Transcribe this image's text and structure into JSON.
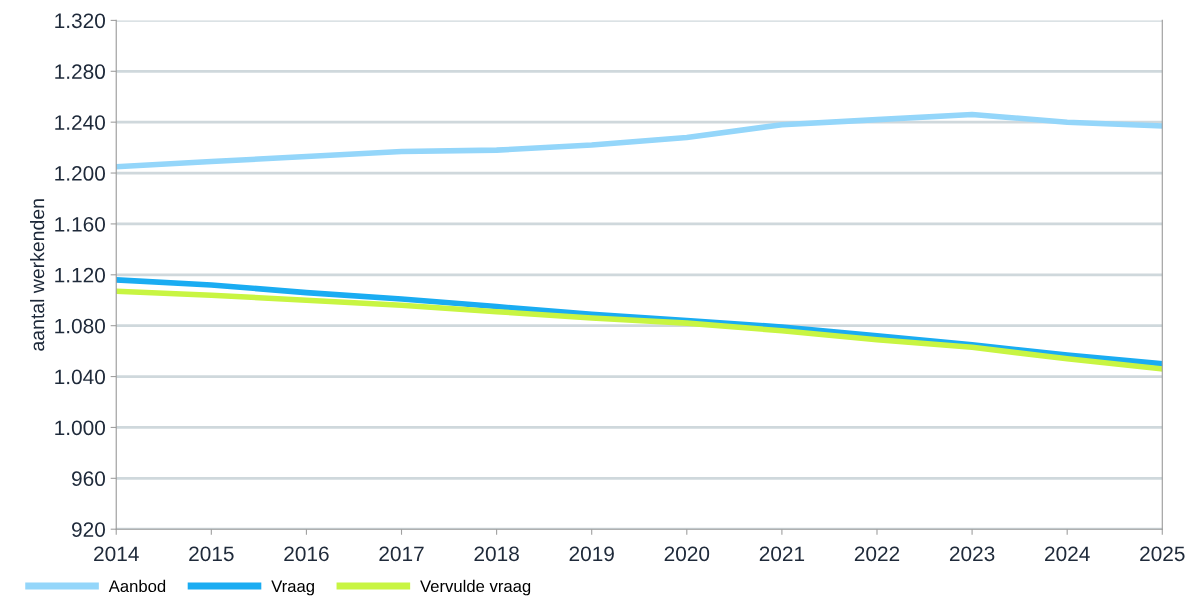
{
  "chart_data": {
    "type": "line",
    "ylabel": "aantal werkenden",
    "x": [
      2014,
      2015,
      2016,
      2017,
      2018,
      2019,
      2020,
      2021,
      2022,
      2023,
      2024,
      2025
    ],
    "series": [
      {
        "name": "Aanbod",
        "color": "#94d6fa",
        "values": [
          1205,
          1209,
          1213,
          1217,
          1218,
          1222,
          1228,
          1238,
          1242,
          1246,
          1240,
          1237
        ]
      },
      {
        "name": "Vraag",
        "color": "#1aacf2",
        "values": [
          1116,
          1112,
          1106,
          1101,
          1095,
          1089,
          1084,
          1079,
          1072,
          1065,
          1057,
          1050
        ]
      },
      {
        "name": "Vervulde vraag",
        "color": "#c8f542",
        "values": [
          1107,
          1104,
          1100,
          1096,
          1091,
          1086,
          1082,
          1076,
          1069,
          1063,
          1054,
          1046
        ]
      }
    ],
    "xlim": [
      2014,
      2025
    ],
    "xticks": [
      2014,
      2015,
      2016,
      2017,
      2018,
      2019,
      2020,
      2021,
      2022,
      2023,
      2024,
      2025
    ],
    "ylim": [
      920,
      1320
    ],
    "yticks": [
      920,
      960,
      {
        "value": 1000,
        "label": "1.000"
      },
      {
        "value": 1040,
        "label": "1.040"
      },
      {
        "value": 1080,
        "label": "1.080"
      },
      {
        "value": 1120,
        "label": "1.120"
      },
      {
        "value": 1160,
        "label": "1.160"
      },
      {
        "value": 1200,
        "label": "1.200"
      },
      {
        "value": 1240,
        "label": "1.240"
      },
      {
        "value": 1280,
        "label": "1.280"
      },
      {
        "value": 1320,
        "label": "1.320"
      }
    ],
    "grid": "y",
    "legend": "bottom left",
    "marker": "none",
    "line_style": "solid"
  }
}
